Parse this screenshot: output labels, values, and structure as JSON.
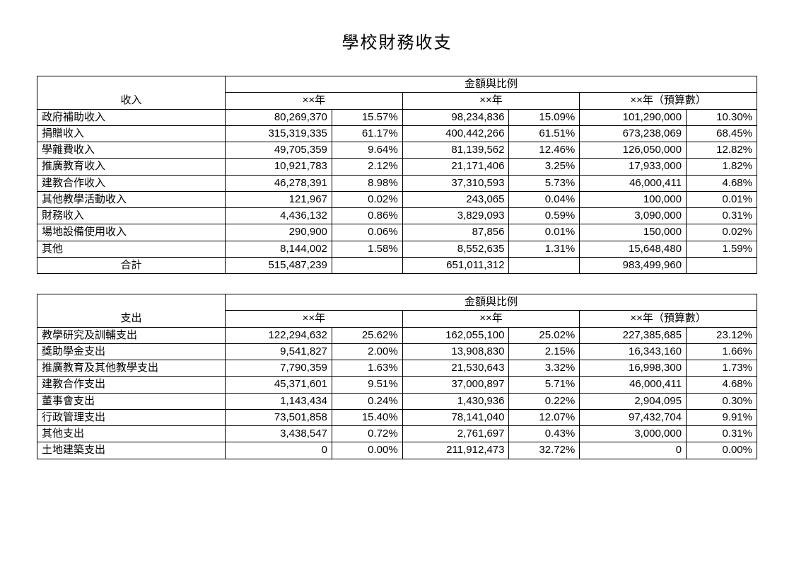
{
  "title": "學校財務收支",
  "columns_header": "金額與比例",
  "years": [
    "××年",
    "××年",
    "××年（預算數）"
  ],
  "table1": {
    "row_header": "收入",
    "total_label": "合計",
    "rows": [
      {
        "label": "政府補助收入",
        "a1": "80,269,370",
        "p1": "15.57%",
        "a2": "98,234,836",
        "p2": "15.09%",
        "a3": "101,290,000",
        "p3": "10.30%"
      },
      {
        "label": "捐贈收入",
        "a1": "315,319,335",
        "p1": "61.17%",
        "a2": "400,442,266",
        "p2": "61.51%",
        "a3": "673,238,069",
        "p3": "68.45%"
      },
      {
        "label": "學雜費收入",
        "a1": "49,705,359",
        "p1": "9.64%",
        "a2": "81,139,562",
        "p2": "12.46%",
        "a3": "126,050,000",
        "p3": "12.82%"
      },
      {
        "label": "推廣教育收入",
        "a1": "10,921,783",
        "p1": "2.12%",
        "a2": "21,171,406",
        "p2": "3.25%",
        "a3": "17,933,000",
        "p3": "1.82%"
      },
      {
        "label": "建教合作收入",
        "a1": "46,278,391",
        "p1": "8.98%",
        "a2": "37,310,593",
        "p2": "5.73%",
        "a3": "46,000,411",
        "p3": "4.68%"
      },
      {
        "label": "其他教學活動收入",
        "a1": "121,967",
        "p1": "0.02%",
        "a2": "243,065",
        "p2": "0.04%",
        "a3": "100,000",
        "p3": "0.01%"
      },
      {
        "label": "財務收入",
        "a1": "4,436,132",
        "p1": "0.86%",
        "a2": "3,829,093",
        "p2": "0.59%",
        "a3": "3,090,000",
        "p3": "0.31%"
      },
      {
        "label": "場地設備使用收入",
        "a1": "290,900",
        "p1": "0.06%",
        "a2": "87,856",
        "p2": "0.01%",
        "a3": "150,000",
        "p3": "0.02%"
      },
      {
        "label": "其他",
        "a1": "8,144,002",
        "p1": "1.58%",
        "a2": "8,552,635",
        "p2": "1.31%",
        "a3": "15,648,480",
        "p3": "1.59%"
      }
    ],
    "totals": {
      "a1": "515,487,239",
      "a2": "651,011,312",
      "a3": "983,499,960"
    }
  },
  "table2": {
    "row_header": "支出",
    "rows": [
      {
        "label": "教學研究及訓輔支出",
        "a1": "122,294,632",
        "p1": "25.62%",
        "a2": "162,055,100",
        "p2": "25.02%",
        "a3": "227,385,685",
        "p3": "23.12%"
      },
      {
        "label": "獎助學金支出",
        "a1": "9,541,827",
        "p1": "2.00%",
        "a2": "13,908,830",
        "p2": "2.15%",
        "a3": "16,343,160",
        "p3": "1.66%"
      },
      {
        "label": "推廣教育及其他教學支出",
        "a1": "7,790,359",
        "p1": "1.63%",
        "a2": "21,530,643",
        "p2": "3.32%",
        "a3": "16,998,300",
        "p3": "1.73%"
      },
      {
        "label": "建教合作支出",
        "a1": "45,371,601",
        "p1": "9.51%",
        "a2": "37,000,897",
        "p2": "5.71%",
        "a3": "46,000,411",
        "p3": "4.68%"
      },
      {
        "label": "董事會支出",
        "a1": "1,143,434",
        "p1": "0.24%",
        "a2": "1,430,936",
        "p2": "0.22%",
        "a3": "2,904,095",
        "p3": "0.30%"
      },
      {
        "label": "行政管理支出",
        "a1": "73,501,858",
        "p1": "15.40%",
        "a2": "78,141,040",
        "p2": "12.07%",
        "a3": "97,432,704",
        "p3": "9.91%"
      },
      {
        "label": "其他支出",
        "a1": "3,438,547",
        "p1": "0.72%",
        "a2": "2,761,697",
        "p2": "0.43%",
        "a3": "3,000,000",
        "p3": "0.31%"
      },
      {
        "label": "土地建築支出",
        "a1": "0",
        "p1": "0.00%",
        "a2": "211,912,473",
        "p2": "32.72%",
        "a3": "0",
        "p3": "0.00%"
      }
    ]
  }
}
